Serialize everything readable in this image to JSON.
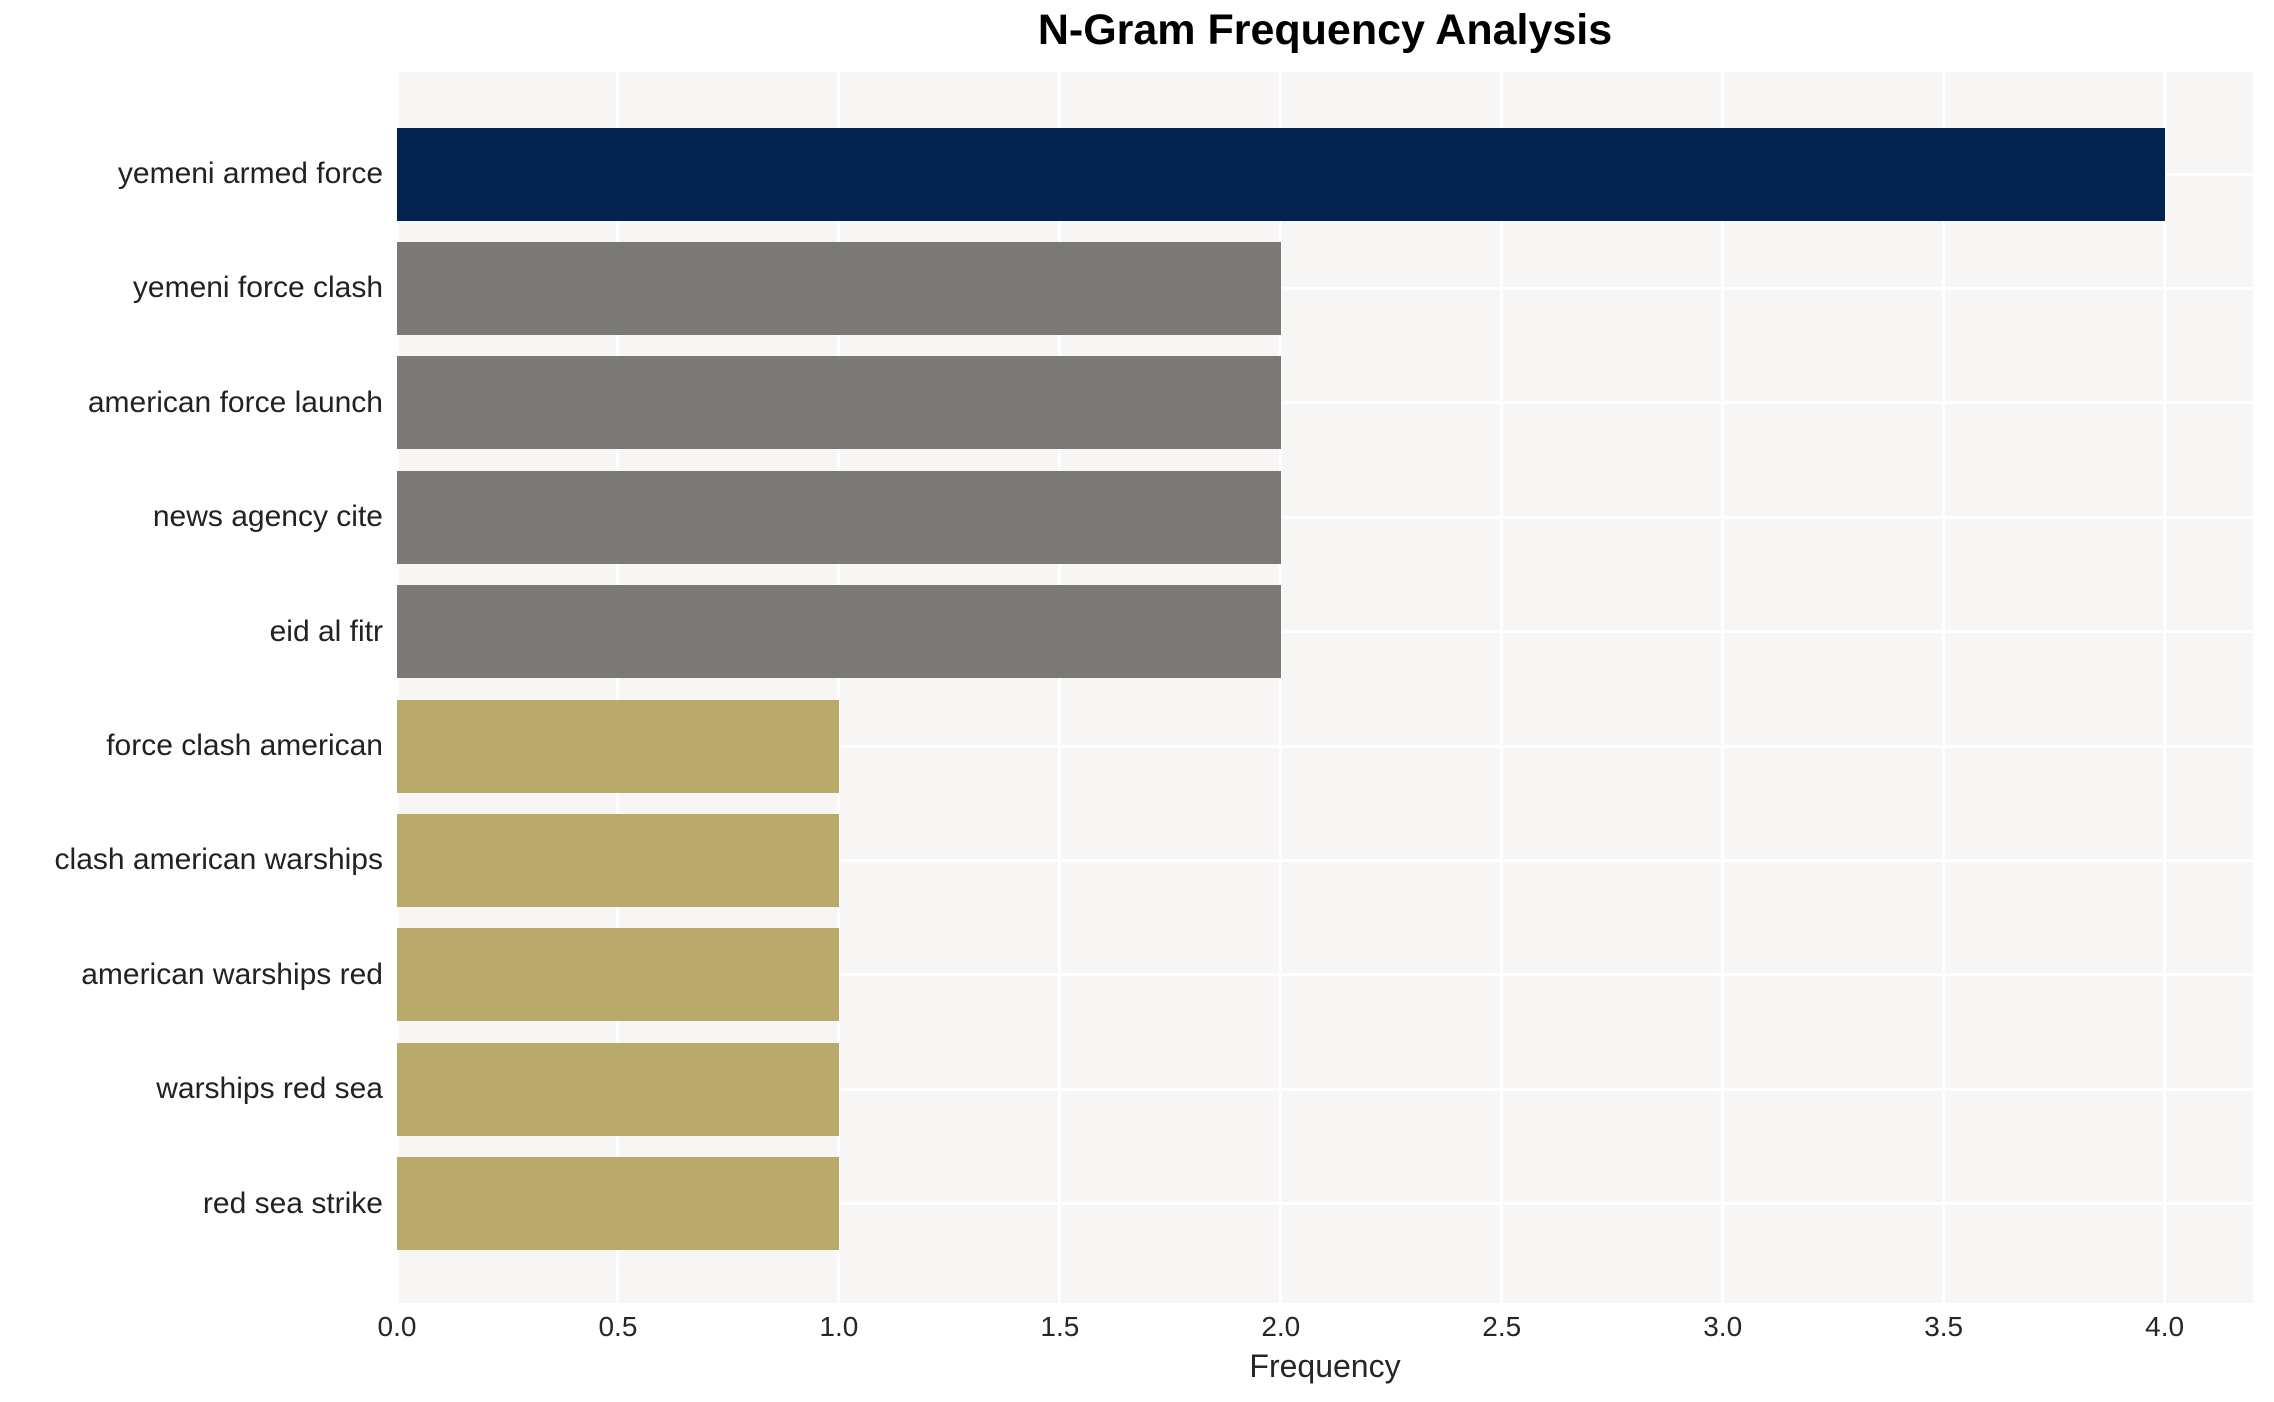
{
  "chart_data": {
    "type": "bar",
    "orientation": "horizontal",
    "title": "N-Gram Frequency Analysis",
    "xlabel": "Frequency",
    "ylabel": "",
    "categories": [
      "yemeni armed force",
      "yemeni force clash",
      "american force launch",
      "news agency cite",
      "eid al fitr",
      "force clash american",
      "clash american warships",
      "american warships red",
      "warships red sea",
      "red sea strike"
    ],
    "values": [
      4,
      2,
      2,
      2,
      2,
      1,
      1,
      1,
      1,
      1
    ],
    "bar_colors": [
      "#01234d",
      "#7b7975",
      "#7b7975",
      "#7b7975",
      "#7b7975",
      "#b9aa6c",
      "#b9aa6c",
      "#b9aa6c",
      "#b9aa6c",
      "#b9aa6c"
    ],
    "xlim": [
      0,
      4.2
    ],
    "xticks": [
      0,
      0.5,
      1,
      1.5,
      2,
      2.5,
      3,
      3.5,
      4
    ],
    "xtick_labels": [
      "0.0",
      "0.5",
      "1.0",
      "1.5",
      "2.0",
      "2.5",
      "3.0",
      "3.5",
      "4.0"
    ],
    "grid": true,
    "legend": false,
    "plot_background": "#f7f6f5",
    "grid_color": "#ffffff",
    "text_color": "#222222",
    "title_color": "#000000"
  }
}
